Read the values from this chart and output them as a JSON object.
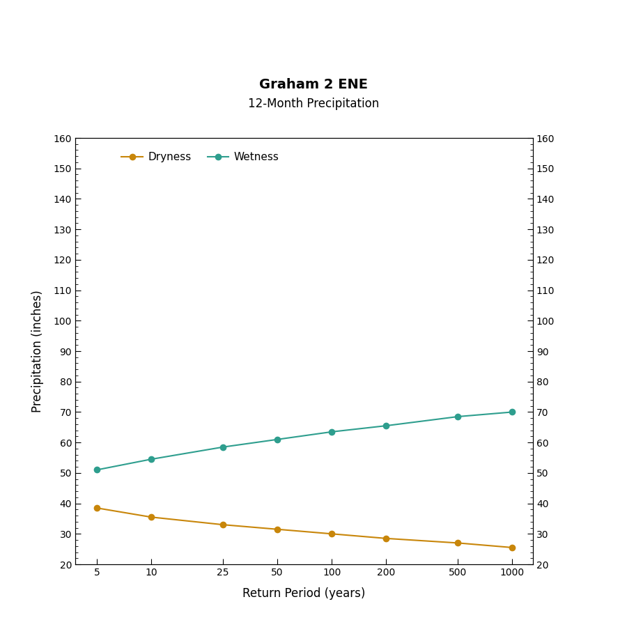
{
  "title": "Graham 2 ENE",
  "subtitle": "12-Month Precipitation",
  "xlabel": "Return Period (years)",
  "ylabel": "Precipitation (inches)",
  "x_values": [
    5,
    10,
    25,
    50,
    100,
    200,
    500,
    1000
  ],
  "dryness_values": [
    38.5,
    35.5,
    33.0,
    31.5,
    30.0,
    28.5,
    27.0,
    25.5
  ],
  "wetness_values": [
    51.0,
    54.5,
    58.5,
    61.0,
    63.5,
    65.5,
    68.5,
    70.0
  ],
  "dryness_color": "#C8860A",
  "wetness_color": "#2E9E8E",
  "ylim": [
    20,
    160
  ],
  "yticks": [
    20,
    30,
    40,
    50,
    60,
    70,
    80,
    90,
    100,
    110,
    120,
    130,
    140,
    150,
    160
  ],
  "background_color": "#FFFFFF",
  "plot_bg_color": "#FFFFFF",
  "title_fontsize": 14,
  "subtitle_fontsize": 12,
  "axis_label_fontsize": 12,
  "tick_fontsize": 10,
  "legend_fontsize": 11,
  "marker_size": 6,
  "line_width": 1.5
}
